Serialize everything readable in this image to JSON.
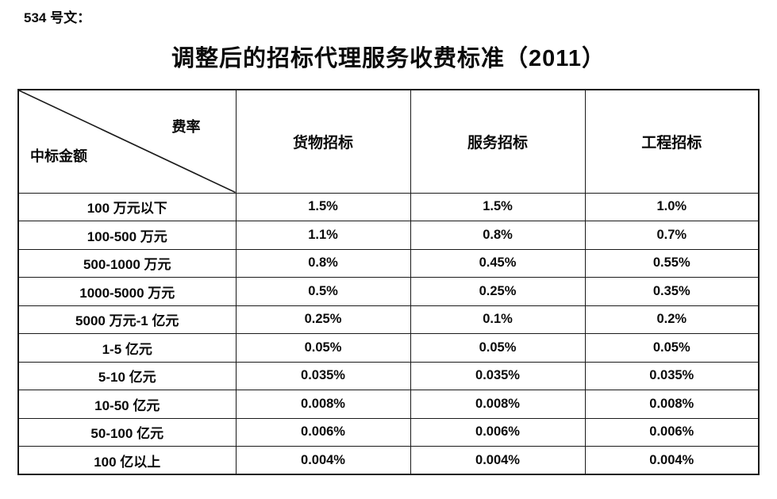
{
  "document": {
    "doc_number": "534 号文：",
    "title": "调整后的招标代理服务收费标准（2011）"
  },
  "table": {
    "corner": {
      "top_right": "费率",
      "bottom_left": "中标金额"
    },
    "columns": [
      "货物招标",
      "服务招标",
      "工程招标"
    ],
    "rows": [
      {
        "label": "100 万元以下",
        "values": [
          "1.5%",
          "1.5%",
          "1.0%"
        ]
      },
      {
        "label": "100-500 万元",
        "values": [
          "1.1%",
          "0.8%",
          "0.7%"
        ]
      },
      {
        "label": "500-1000 万元",
        "values": [
          "0.8%",
          "0.45%",
          "0.55%"
        ]
      },
      {
        "label": "1000-5000 万元",
        "values": [
          "0.5%",
          "0.25%",
          "0.35%"
        ]
      },
      {
        "label": "5000 万元-1 亿元",
        "values": [
          "0.25%",
          "0.1%",
          "0.2%"
        ]
      },
      {
        "label": "1-5 亿元",
        "values": [
          "0.05%",
          "0.05%",
          "0.05%"
        ]
      },
      {
        "label": "5-10 亿元",
        "values": [
          "0.035%",
          "0.035%",
          "0.035%"
        ]
      },
      {
        "label": "10-50 亿元",
        "values": [
          "0.008%",
          "0.008%",
          "0.008%"
        ]
      },
      {
        "label": "50-100 亿元",
        "values": [
          "0.006%",
          "0.006%",
          "0.006%"
        ]
      },
      {
        "label": "100 亿以上",
        "values": [
          "0.004%",
          "0.004%",
          "0.004%"
        ]
      }
    ]
  },
  "colors": {
    "text": "#0a0a0a",
    "border": "#1a1a1a",
    "background": "#ffffff"
  }
}
